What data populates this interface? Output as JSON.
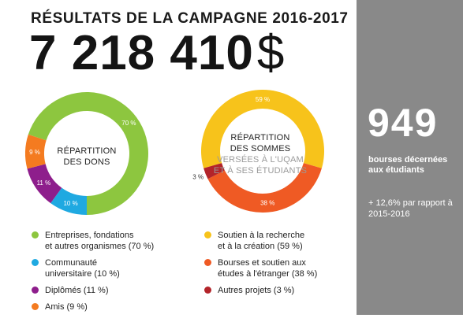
{
  "header": {
    "title": "RÉSULTATS DE LA CAMPAGNE 2016-2017",
    "amount": "7 218 410",
    "currency": "$"
  },
  "chart_data": [
    {
      "type": "pie",
      "center_label": [
        "RÉPARTITION",
        "DES DONS"
      ],
      "categories": [
        "Entreprises, fondations et autres organismes",
        "Communauté universitaire",
        "Diplômés",
        "Amis"
      ],
      "values": [
        70,
        10,
        11,
        9
      ],
      "slice_labels": [
        "70 %",
        "10 %",
        "11 %",
        "9 %"
      ],
      "colors": [
        "#8dc63f",
        "#1fa9e1",
        "#8e1e8c",
        "#f47b20"
      ],
      "legend": [
        [
          "Entreprises, fondations",
          "et autres organismes (70 %)"
        ],
        [
          "Communauté",
          "universitaire (10 %)"
        ],
        [
          "Diplômés (11 %)"
        ],
        [
          "Amis (9 %)"
        ]
      ]
    },
    {
      "type": "pie",
      "center_label": [
        "RÉPARTITION",
        "DES SOMMES"
      ],
      "center_label_muted": [
        "VERSÉES À L'UQAM",
        "ET À SES ÉTUDIANTS"
      ],
      "categories": [
        "Soutien à la recherche et à la création",
        "Bourses et soutien aux études à l'étranger",
        "Autres projets"
      ],
      "values": [
        59,
        38,
        3
      ],
      "slice_labels": [
        "59 %",
        "38 %",
        "3 %"
      ],
      "colors": [
        "#f7c31b",
        "#ef5a24",
        "#b3242a"
      ],
      "legend": [
        [
          "Soutien à la recherche",
          "et à la création (59 %)"
        ],
        [
          "Bourses et soutien aux",
          "études à l'étranger (38 %)"
        ],
        [
          "Autres projets (3 %)"
        ]
      ]
    }
  ],
  "sidebar": {
    "number": "949",
    "label": "bourses décernées aux étudiants",
    "note": "+ 12,6% par rapport à 2015-2016"
  }
}
